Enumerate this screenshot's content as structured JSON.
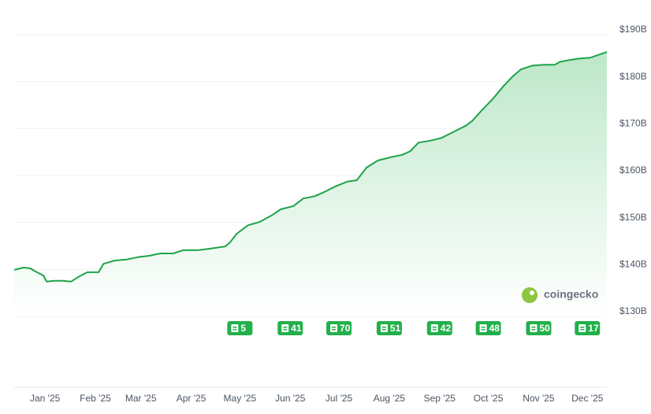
{
  "chart_data": {
    "type": "area",
    "color": "#1ea34a",
    "x": [
      -19,
      -13,
      -9,
      -6,
      -1,
      1,
      6,
      11,
      16,
      21,
      26,
      33,
      36,
      43,
      50,
      57,
      64,
      71,
      79,
      85,
      94,
      101,
      111,
      114,
      118,
      125,
      132,
      140,
      145,
      153,
      159,
      166,
      172,
      179,
      186,
      192,
      198,
      205,
      213,
      220,
      225,
      230,
      237,
      244,
      251,
      259,
      263,
      269,
      276,
      282,
      288,
      293,
      300,
      307,
      314,
      317,
      323,
      329,
      336,
      340,
      346
    ],
    "values": [
      139.9,
      140.4,
      140.2,
      139.6,
      138.7,
      137.4,
      137.6,
      137.6,
      137.4,
      138.5,
      139.4,
      139.4,
      141.2,
      141.9,
      142.1,
      142.6,
      142.9,
      143.4,
      143.4,
      144.1,
      144.1,
      144.4,
      144.9,
      145.8,
      147.6,
      149.4,
      150.1,
      151.6,
      152.8,
      153.5,
      155.1,
      155.6,
      156.5,
      157.7,
      158.7,
      159.0,
      161.7,
      163.2,
      163.9,
      164.4,
      165.2,
      167.0,
      167.4,
      168.0,
      169.2,
      170.6,
      171.6,
      173.9,
      176.4,
      178.9,
      181.1,
      182.6,
      183.4,
      183.6,
      183.6,
      184.2,
      184.6,
      184.9,
      185.1,
      185.6,
      186.3
    ],
    "xlim": [
      -19,
      346
    ],
    "xticks": [
      {
        "value": 0,
        "label": "Jan '25"
      },
      {
        "value": 31,
        "label": "Feb '25"
      },
      {
        "value": 59,
        "label": "Mar '25"
      },
      {
        "value": 90,
        "label": "Apr '25"
      },
      {
        "value": 120,
        "label": "May '25"
      },
      {
        "value": 151,
        "label": "Jun '25"
      },
      {
        "value": 181,
        "label": "Jul '25"
      },
      {
        "value": 212,
        "label": "Aug '25"
      },
      {
        "value": 243,
        "label": "Sep '25"
      },
      {
        "value": 273,
        "label": "Oct '25"
      },
      {
        "value": 304,
        "label": "Nov '25"
      },
      {
        "value": 334,
        "label": "Dec '25"
      }
    ],
    "ylim": [
      130,
      190
    ],
    "yticks": [
      {
        "value": 130,
        "label": "$130B"
      },
      {
        "value": 140,
        "label": "$140B"
      },
      {
        "value": 150,
        "label": "$150B"
      },
      {
        "value": 160,
        "label": "$160B"
      },
      {
        "value": 170,
        "label": "$170B"
      },
      {
        "value": 180,
        "label": "$180B"
      },
      {
        "value": 190,
        "label": "$190B"
      }
    ],
    "grid": true,
    "annotations": [
      {
        "x": 120,
        "count": 5
      },
      {
        "x": 151,
        "count": 41
      },
      {
        "x": 181,
        "count": 70
      },
      {
        "x": 212,
        "count": 51
      },
      {
        "x": 243,
        "count": 42
      },
      {
        "x": 273,
        "count": 48
      },
      {
        "x": 304,
        "count": 50
      },
      {
        "x": 334,
        "count": 17
      }
    ],
    "watermark": "coingecko"
  }
}
